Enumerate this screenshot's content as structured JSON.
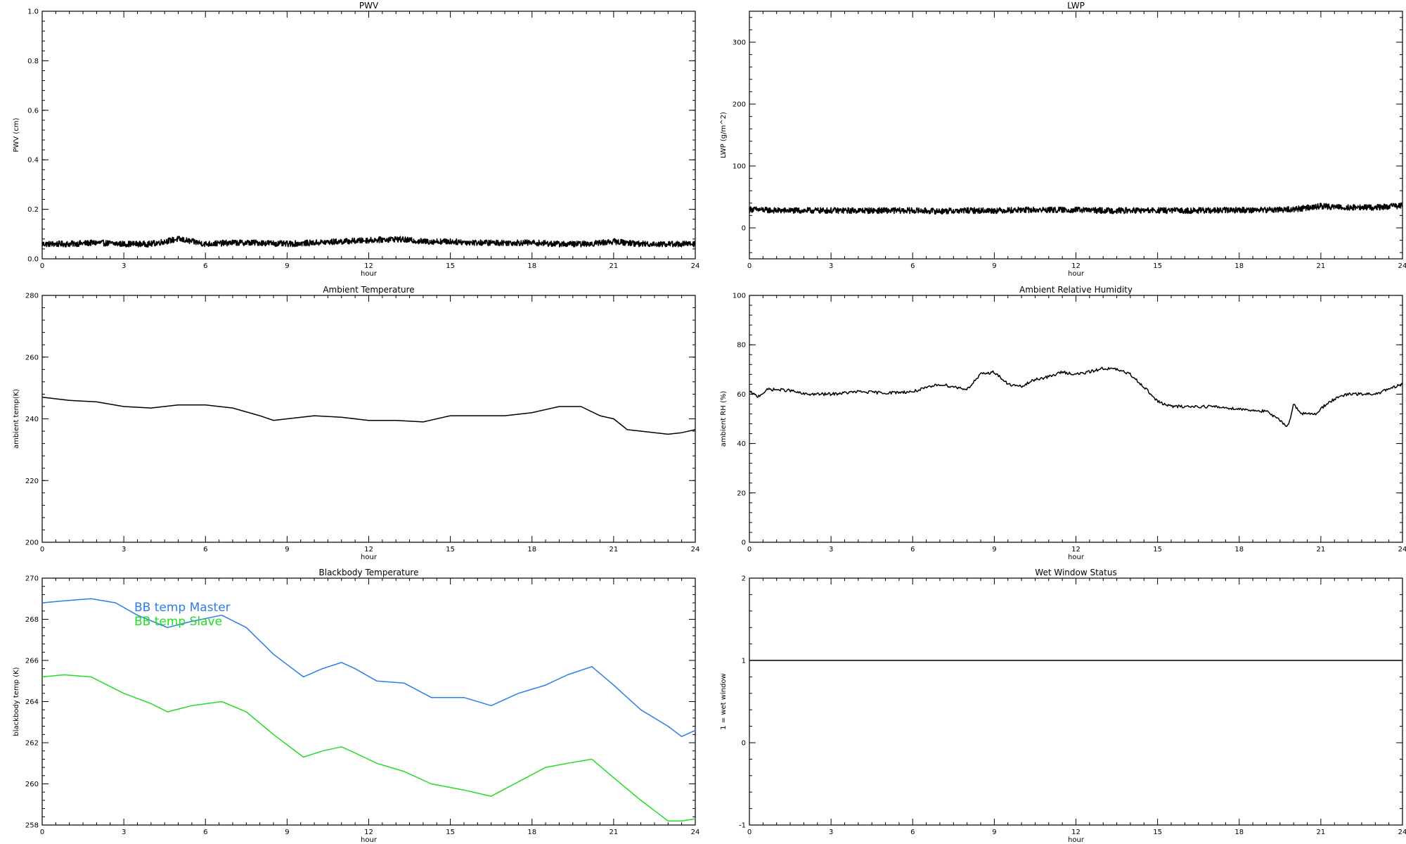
{
  "chart_data": [
    {
      "type": "line",
      "title": "PWV",
      "xlabel": "hour",
      "ylabel": "PWV (cm)",
      "xlim": [
        0,
        24
      ],
      "ylim": [
        0.0,
        1.0
      ],
      "xticks": [
        0,
        3,
        6,
        9,
        12,
        15,
        18,
        21,
        24
      ],
      "yticks": [
        0.0,
        0.2,
        0.4,
        0.6,
        0.8,
        1.0
      ],
      "ytick_labels": [
        "0.0",
        "0.2",
        "0.4",
        "0.6",
        "0.8",
        "1.0"
      ],
      "series": [
        {
          "color": "#000000",
          "style": "noisy",
          "x": [
            0,
            1,
            2,
            3,
            4,
            5,
            6,
            7,
            8,
            9,
            10,
            11,
            12,
            13,
            14,
            15,
            16,
            17,
            18,
            19,
            20,
            21,
            22,
            23,
            24
          ],
          "y": [
            0.06,
            0.06,
            0.065,
            0.06,
            0.06,
            0.08,
            0.06,
            0.065,
            0.065,
            0.06,
            0.065,
            0.07,
            0.075,
            0.08,
            0.07,
            0.07,
            0.065,
            0.065,
            0.065,
            0.06,
            0.06,
            0.07,
            0.06,
            0.06,
            0.06
          ]
        }
      ]
    },
    {
      "type": "line",
      "title": "LWP",
      "xlabel": "hour",
      "ylabel": "LWP (g/m^2)",
      "xlim": [
        0,
        24
      ],
      "ylim": [
        -50,
        350
      ],
      "xticks": [
        0,
        3,
        6,
        9,
        12,
        15,
        18,
        21,
        24
      ],
      "yticks": [
        0,
        100,
        200,
        300
      ],
      "ytick_labels": [
        "0",
        "100",
        "200",
        "300"
      ],
      "series": [
        {
          "color": "#000000",
          "style": "noisy",
          "x": [
            0,
            1,
            2,
            3,
            4,
            5,
            6,
            7,
            8,
            9,
            10,
            11,
            12,
            13,
            14,
            15,
            16,
            17,
            18,
            19,
            20,
            21,
            22,
            23,
            24
          ],
          "y": [
            30,
            28,
            28,
            28,
            28,
            28,
            28,
            27,
            28,
            28,
            29,
            29,
            29,
            28,
            28,
            28,
            28,
            28,
            29,
            29,
            30,
            35,
            33,
            33,
            36
          ]
        }
      ]
    },
    {
      "type": "line",
      "title": "Ambient Temperature",
      "xlabel": "hour",
      "ylabel": "ambient temp(K)",
      "xlim": [
        0,
        24
      ],
      "ylim": [
        200,
        280
      ],
      "xticks": [
        0,
        3,
        6,
        9,
        12,
        15,
        18,
        21,
        24
      ],
      "yticks": [
        200,
        220,
        240,
        260,
        280
      ],
      "ytick_labels": [
        "200",
        "220",
        "240",
        "260",
        "280"
      ],
      "series": [
        {
          "color": "#000000",
          "style": "smooth",
          "x": [
            0,
            1,
            2,
            3,
            4,
            5,
            6,
            7,
            8,
            8.5,
            9,
            10,
            11,
            12,
            13,
            14,
            15,
            16,
            17,
            18,
            19,
            19.8,
            20.5,
            21,
            21.5,
            22,
            23,
            23.5,
            24
          ],
          "y": [
            247,
            246,
            245.5,
            244,
            243.5,
            244.5,
            244.5,
            243.5,
            241,
            239.5,
            240,
            241,
            240.5,
            239.5,
            239.5,
            239,
            241,
            241,
            241,
            242,
            244,
            244,
            241,
            240,
            236.5,
            236,
            235,
            235.5,
            236.5
          ]
        }
      ]
    },
    {
      "type": "line",
      "title": "Ambient Relative Humidity",
      "xlabel": "hour",
      "ylabel": "ambient RH (%)",
      "xlim": [
        0,
        24
      ],
      "ylim": [
        0,
        100
      ],
      "xticks": [
        0,
        3,
        6,
        9,
        12,
        15,
        18,
        21,
        24
      ],
      "yticks": [
        0,
        20,
        40,
        60,
        80,
        100
      ],
      "ytick_labels": [
        "0",
        "20",
        "40",
        "60",
        "80",
        "100"
      ],
      "series": [
        {
          "color": "#000000",
          "style": "jagged",
          "x": [
            0,
            0.3,
            0.7,
            1.5,
            2,
            3,
            4,
            5,
            6,
            7,
            7.5,
            8,
            8.5,
            9,
            9.5,
            10,
            10.5,
            11,
            11.5,
            12,
            12.5,
            13,
            13.5,
            14,
            14.5,
            15,
            15.5,
            16,
            17,
            18,
            19,
            19.8,
            20,
            20.3,
            20.8,
            21.2,
            21.5,
            22,
            23,
            24
          ],
          "y": [
            61,
            59,
            62,
            61.5,
            60,
            60,
            61,
            60.5,
            61,
            64,
            63,
            62,
            68,
            69,
            64,
            63,
            66,
            67,
            69,
            68,
            69,
            70.5,
            70,
            68,
            63,
            57,
            55,
            55,
            55,
            54,
            53,
            47,
            56,
            52,
            52,
            56,
            58,
            60,
            60,
            64
          ]
        }
      ]
    },
    {
      "type": "line",
      "title": "Blackbody Temperature",
      "xlabel": "hour",
      "ylabel": "blackbody temp (K)",
      "xlim": [
        0,
        24
      ],
      "ylim": [
        258,
        270
      ],
      "xticks": [
        0,
        3,
        6,
        9,
        12,
        15,
        18,
        21,
        24
      ],
      "yticks": [
        258,
        260,
        262,
        264,
        266,
        268,
        270
      ],
      "ytick_labels": [
        "258",
        "260",
        "262",
        "264",
        "266",
        "268",
        "270"
      ],
      "legend": [
        "BB temp Master",
        "BB temp Slave"
      ],
      "series": [
        {
          "name": "BB temp Master",
          "color": "#2b7de9",
          "style": "smooth",
          "x": [
            0,
            0.8,
            1.8,
            2.7,
            3.5,
            4.6,
            5.5,
            6.6,
            7.5,
            8.5,
            9.6,
            10.3,
            11,
            11.5,
            12.3,
            13.3,
            14.3,
            15.5,
            16.5,
            17.5,
            18.5,
            19.3,
            20.2,
            21,
            22,
            23,
            23.5,
            24
          ],
          "y": [
            268.8,
            268.9,
            269.0,
            268.8,
            268.2,
            267.6,
            267.9,
            268.2,
            267.6,
            266.3,
            265.2,
            265.6,
            265.9,
            265.6,
            265.0,
            264.9,
            264.2,
            264.2,
            263.8,
            264.4,
            264.8,
            265.3,
            265.7,
            264.8,
            263.6,
            262.8,
            262.3,
            262.6
          ]
        },
        {
          "name": "BB temp Slave",
          "color": "#22dd22",
          "style": "smooth",
          "x": [
            0,
            0.8,
            1.8,
            3,
            4,
            4.6,
            5.5,
            6.6,
            7.5,
            8.5,
            9.6,
            10.3,
            11,
            11.5,
            12.3,
            13.3,
            14.3,
            15.5,
            16.5,
            17.5,
            18.5,
            19.3,
            20.2,
            21,
            22,
            23,
            23.5,
            24
          ],
          "y": [
            265.2,
            265.3,
            265.2,
            264.4,
            263.9,
            263.5,
            263.8,
            264.0,
            263.5,
            262.4,
            261.3,
            261.6,
            261.8,
            261.5,
            261.0,
            260.6,
            260.0,
            259.7,
            259.4,
            260.1,
            260.8,
            261.0,
            261.2,
            260.3,
            259.2,
            258.2,
            258.2,
            258.3
          ]
        }
      ]
    },
    {
      "type": "line",
      "title": "Wet Window Status",
      "xlabel": "hour",
      "ylabel": "1 = wet window",
      "xlim": [
        0,
        24
      ],
      "ylim": [
        -1,
        2
      ],
      "xticks": [
        0,
        3,
        6,
        9,
        12,
        15,
        18,
        21,
        24
      ],
      "yticks": [
        -1,
        0,
        1,
        2
      ],
      "ytick_labels": [
        "-1",
        "0",
        "1",
        "2"
      ],
      "series": [
        {
          "color": "#000000",
          "style": "smooth",
          "x": [
            0,
            24
          ],
          "y": [
            1,
            1
          ]
        }
      ]
    }
  ]
}
